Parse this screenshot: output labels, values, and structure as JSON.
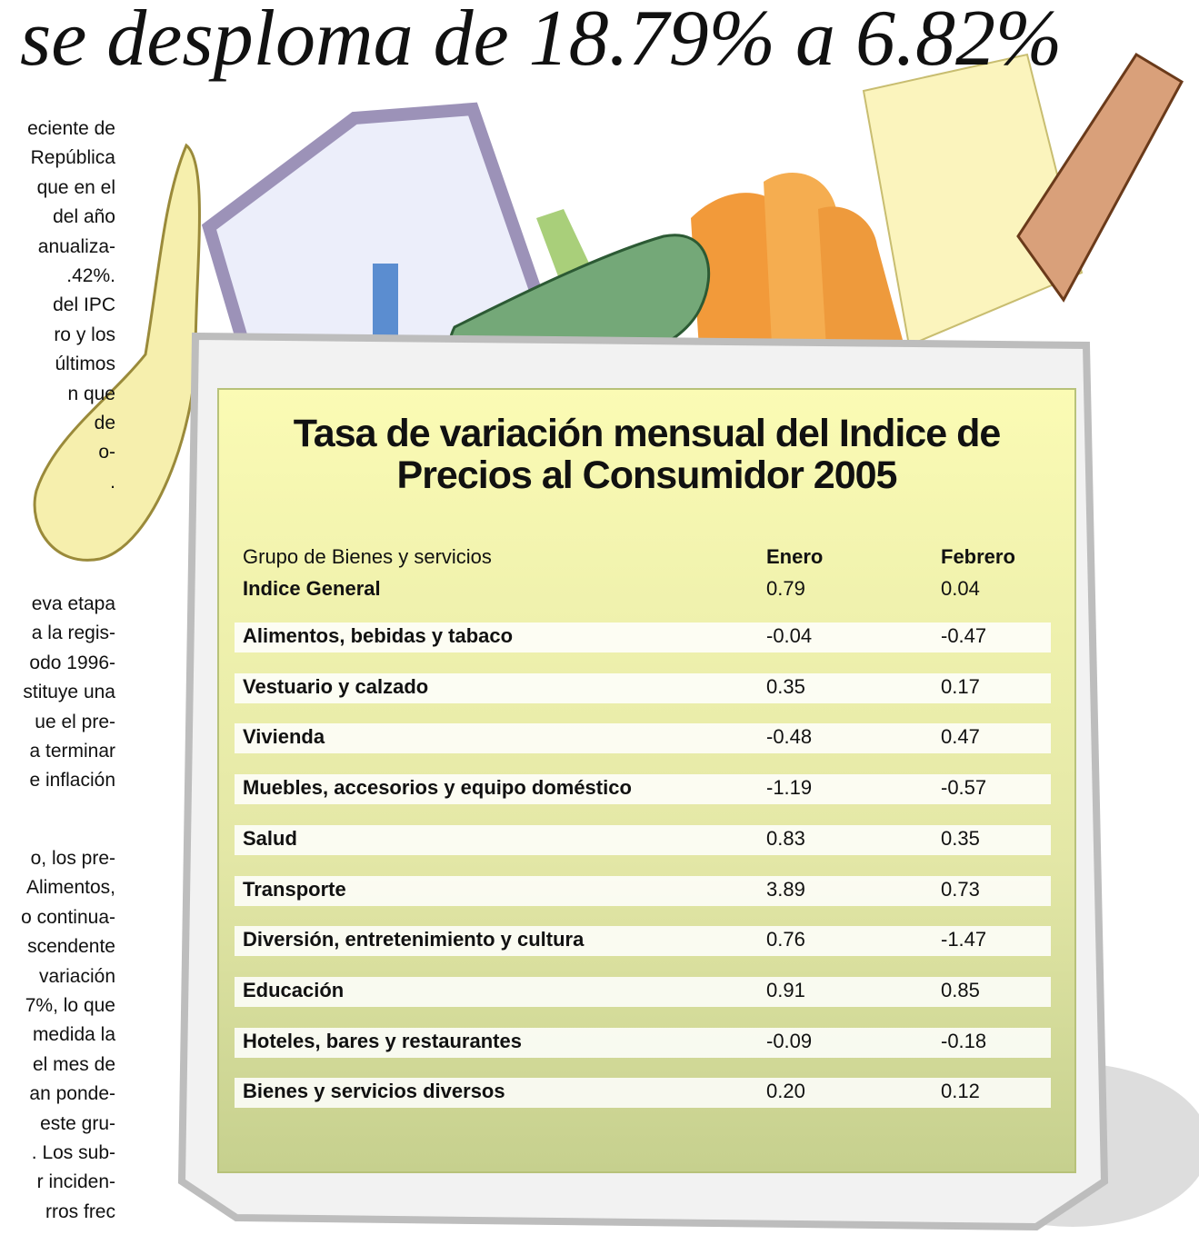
{
  "header": {
    "title": "se desploma de 18.79% a 6.82%"
  },
  "column": {
    "paragraphs": [
      [
        "eciente de",
        "República",
        "que en el",
        "del año",
        "anualiza-",
        ".42%.",
        "del IPC",
        "ro y los",
        "últimos",
        "n que",
        "de",
        "o-",
        "."
      ],
      [
        "eva etapa",
        "a la regis-",
        "odo 1996-",
        "stituye una",
        "ue el pre-",
        "a terminar",
        "e inflación"
      ],
      [
        "o, los pre-",
        "Alimentos,",
        "o continua-",
        "scendente",
        "variación",
        "7%, lo que",
        "medida la",
        "el mes de",
        "an ponde-",
        "este gru-",
        ". Los sub-",
        "r inciden-",
        "rros frec"
      ]
    ]
  },
  "table": {
    "title": [
      "Tasa de variación mensual del Indice de",
      "Precios al Consumidor 2005"
    ],
    "header": [
      "Grupo de Bienes y servicios",
      "Enero",
      "Febrero"
    ],
    "general": [
      "Indice General",
      "0.79",
      "0.04"
    ],
    "rows": [
      [
        "Alimentos, bebidas y tabaco",
        "-0.04",
        "-0.47"
      ],
      [
        "Vestuario y calzado",
        "0.35",
        "0.17"
      ],
      [
        "Vivienda",
        "-0.48",
        "0.47"
      ],
      [
        "Muebles, accesorios y equipo doméstico",
        "-1.19",
        "-0.57"
      ],
      [
        "Salud",
        "0.83",
        "0.35"
      ],
      [
        "Transporte",
        "3.89",
        "0.73"
      ],
      [
        "Diversión, entretenimiento y cultura",
        "0.76",
        "-1.47"
      ],
      [
        "Educación",
        "0.91",
        "0.85"
      ],
      [
        "Hoteles, bares y restaurantes",
        "-0.09",
        "-0.18"
      ],
      [
        "Bienes y servicios diversos",
        "0.20",
        "0.12"
      ]
    ]
  }
}
